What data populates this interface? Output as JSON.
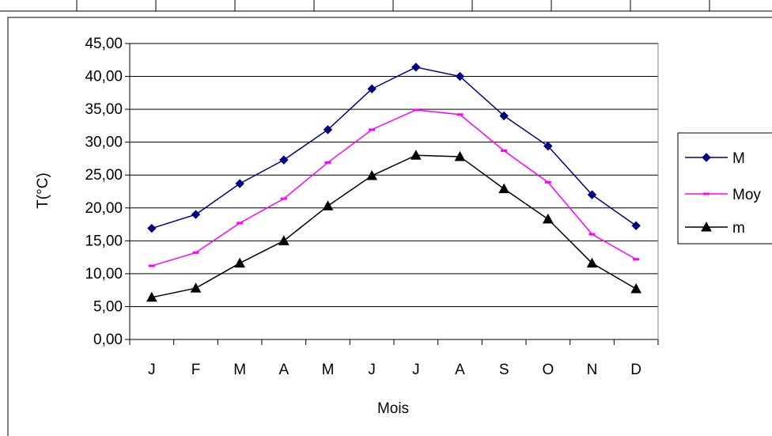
{
  "chart_data": {
    "type": "line",
    "categories": [
      "J",
      "F",
      "M",
      "A",
      "M",
      "J",
      "J",
      "A",
      "S",
      "O",
      "N",
      "D"
    ],
    "series": [
      {
        "name": "M",
        "color": "#000080",
        "marker": "diamond",
        "values": [
          16.9,
          19.0,
          23.7,
          27.3,
          31.9,
          38.1,
          41.4,
          40.0,
          34.0,
          29.4,
          22.0,
          17.3
        ]
      },
      {
        "name": "Moy",
        "color": "#FF00FF",
        "marker": "dash",
        "values": [
          11.2,
          13.2,
          17.7,
          21.4,
          26.9,
          31.9,
          34.9,
          34.2,
          28.7,
          23.9,
          16.0,
          12.2
        ]
      },
      {
        "name": "m",
        "color": "#000000",
        "marker": "triangle",
        "values": [
          6.4,
          7.8,
          11.6,
          15.0,
          20.3,
          24.9,
          28.0,
          27.8,
          22.9,
          18.3,
          11.6,
          7.7
        ]
      }
    ],
    "yticks": [
      "0,00",
      "5,00",
      "10,00",
      "15,00",
      "20,00",
      "25,00",
      "30,00",
      "35,00",
      "40,00",
      "45,00"
    ],
    "ylim": [
      0,
      45
    ],
    "xlabel": "Mois",
    "ylabel": "T(°C)",
    "grid": "horizontal",
    "legend": "right"
  }
}
